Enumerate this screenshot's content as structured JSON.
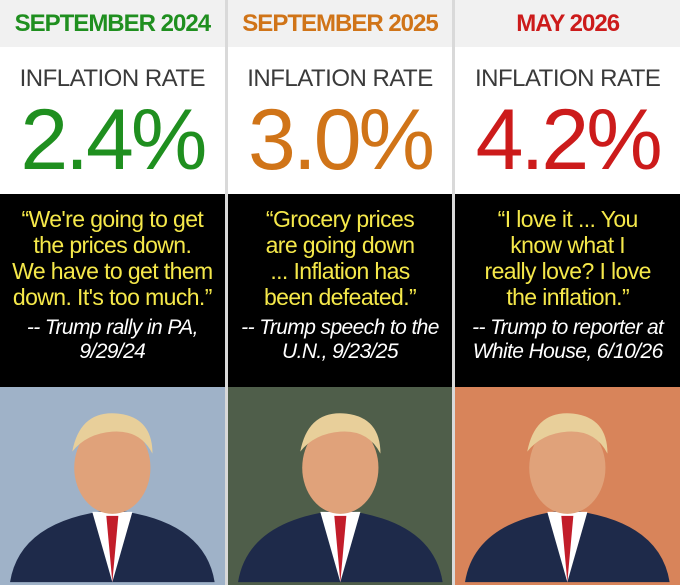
{
  "columns": [
    {
      "period": "SEPTEMBER 2024",
      "label": "INFLATION RATE",
      "rate": "2.4%",
      "color": "#1f8f1f",
      "quote_lines": [
        "“We're going to get",
        "the prices down.",
        "We have to get them",
        "down. It's too much.”"
      ],
      "attribution_lines": [
        "-- Trump rally in PA,",
        "9/29/24"
      ],
      "photo_bg": "#9fb2c8"
    },
    {
      "period": "SEPTEMBER 2025",
      "label": "INFLATION RATE",
      "rate": "3.0%",
      "color": "#d07418",
      "quote_lines": [
        "“Grocery prices",
        "are going down",
        "... Inflation has",
        "been defeated.”"
      ],
      "attribution_lines": [
        "-- Trump speech to the",
        "U.N., 9/23/25"
      ],
      "photo_bg": "#4f5e4a"
    },
    {
      "period": "MAY 2026",
      "label": "INFLATION RATE",
      "rate": "4.2%",
      "color": "#cc1b1b",
      "quote_lines": [
        "“I love it ... You",
        "know what I",
        "really love? I love",
        "the inflation.”"
      ],
      "attribution_lines": [
        "-- Trump to reporter at",
        "White House, 6/10/26"
      ],
      "photo_bg": "#d8845a"
    }
  ]
}
